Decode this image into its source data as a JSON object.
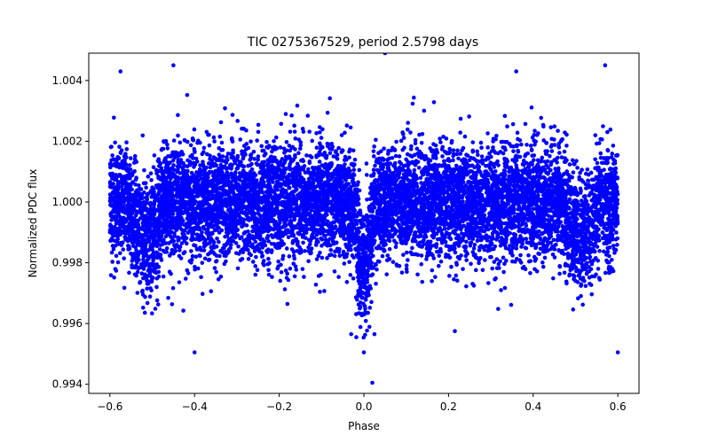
{
  "chart_data": {
    "type": "scatter",
    "title": "TIC 0275367529, period 2.5798 days",
    "xlabel": "Phase",
    "ylabel": "Normalized PDC flux",
    "xlim": [
      -0.65,
      0.65
    ],
    "ylim": [
      0.9937,
      1.0049
    ],
    "xticks": [
      -0.6,
      -0.4,
      -0.2,
      0.0,
      0.2,
      0.4,
      0.6
    ],
    "xtick_labels": [
      "−0.6",
      "−0.4",
      "−0.2",
      "0.0",
      "0.2",
      "0.4",
      "0.6"
    ],
    "yticks": [
      0.994,
      0.996,
      0.998,
      1.0,
      1.002,
      1.004
    ],
    "ytick_labels": [
      "0.994",
      "0.996",
      "0.998",
      "1.000",
      "1.002",
      "1.004"
    ],
    "marker_color": "#0000ff",
    "grid": false,
    "series": [
      {
        "name": "Normalized PDC flux",
        "phase_range": [
          -0.6,
          0.6
        ],
        "baseline_flux": 1.0,
        "scatter_sigma": 0.0012,
        "n_points": 9000,
        "eclipses": [
          {
            "center": 0.0,
            "depth": 0.0022,
            "half_width": 0.025
          },
          {
            "center": -0.515,
            "depth": 0.0011,
            "half_width": 0.045
          },
          {
            "center": 0.515,
            "depth": 0.0011,
            "half_width": 0.045
          }
        ],
        "notable_points": [
          {
            "x": 0.05,
            "y": 1.0049
          },
          {
            "x": -0.575,
            "y": 1.0043
          },
          {
            "x": -0.45,
            "y": 1.0045
          },
          {
            "x": 0.36,
            "y": 1.0043
          },
          {
            "x": 0.57,
            "y": 1.0045
          },
          {
            "x": -0.4,
            "y": 0.99505
          },
          {
            "x": 0.6,
            "y": 0.99505
          },
          {
            "x": 0.02,
            "y": 0.99405
          },
          {
            "x": 0.0,
            "y": 0.99505
          },
          {
            "x": 0.215,
            "y": 0.99575
          },
          {
            "x": -0.03,
            "y": 0.99565
          },
          {
            "x": 0.025,
            "y": 0.99565
          }
        ]
      }
    ]
  }
}
